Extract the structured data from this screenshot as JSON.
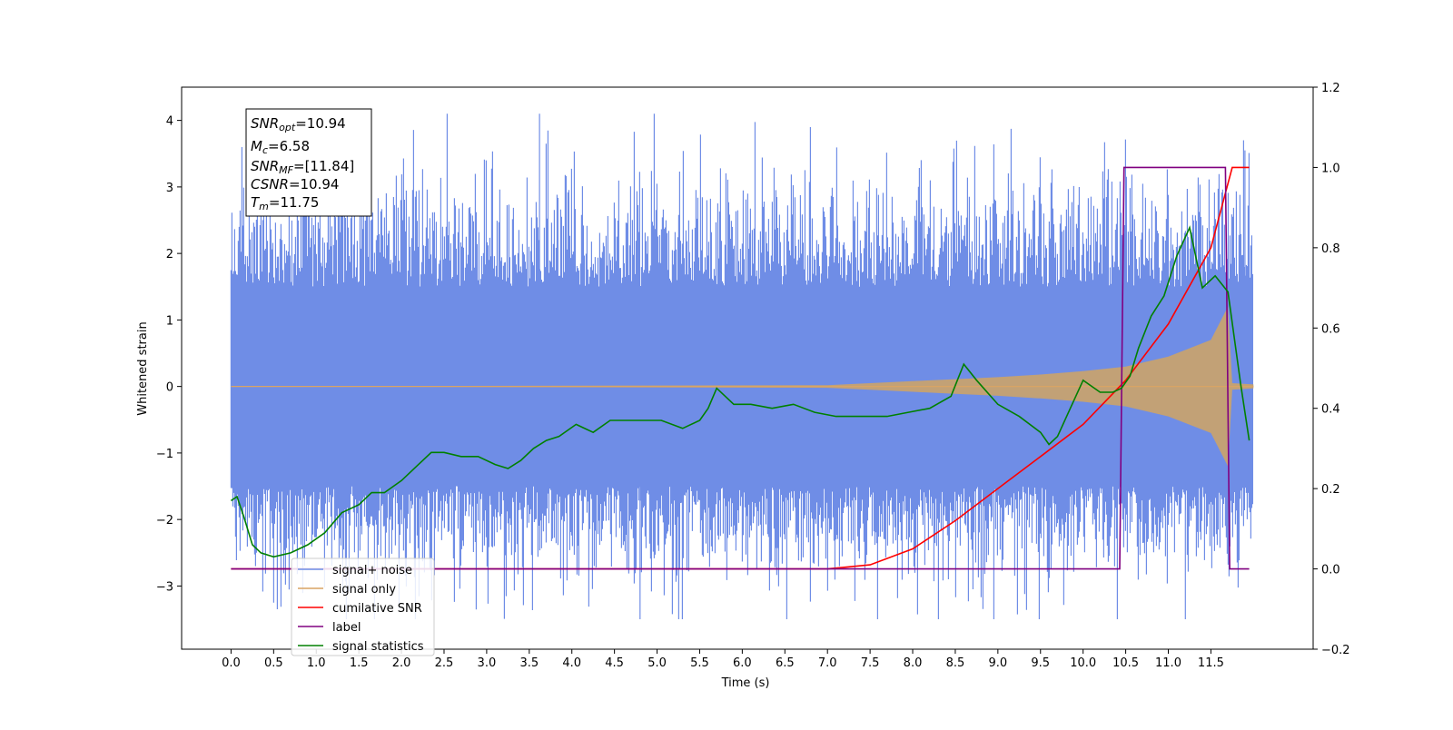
{
  "chart_data": {
    "type": "line",
    "xlabel": "Time (s)",
    "ylabel": "Whitened strain",
    "xlim": [
      -0.58,
      12.7
    ],
    "ylim": [
      -3.95,
      4.5
    ],
    "ylim_right": [
      -0.2,
      1.2
    ],
    "xticks": [
      0.0,
      0.5,
      1.0,
      1.5,
      2.0,
      2.5,
      3.0,
      3.5,
      4.0,
      4.5,
      5.0,
      5.5,
      6.0,
      6.5,
      7.0,
      7.5,
      8.0,
      8.5,
      9.0,
      9.5,
      10.0,
      10.5,
      11.0,
      11.5
    ],
    "xtick_labels": [
      "0.0",
      "0.5",
      "1.0",
      "1.5",
      "2.0",
      "2.5",
      "3.0",
      "3.5",
      "4.0",
      "4.5",
      "5.0",
      "5.5",
      "6.0",
      "6.5",
      "7.0",
      "7.5",
      "8.0",
      "8.5",
      "9.0",
      "9.5",
      "10.0",
      "10.5",
      "11.0",
      "11.5"
    ],
    "yticks_left": [
      -3,
      -2,
      -1,
      0,
      1,
      2,
      3,
      4
    ],
    "ytick_labels_left": [
      "−3",
      "−2",
      "−1",
      "0",
      "1",
      "2",
      "3",
      "4"
    ],
    "yticks_right": [
      -0.2,
      0.0,
      0.2,
      0.4,
      0.6,
      0.8,
      1.0,
      1.2
    ],
    "ytick_labels_right": [
      "−0.2",
      "0.0",
      "0.2",
      "0.4",
      "0.6",
      "0.8",
      "1.0",
      "1.2"
    ],
    "grid": false,
    "legend_position": "lower-left",
    "annotation_position": "top-left",
    "annotation": {
      "snr_opt": {
        "sym": "SNR",
        "sub": "opt",
        "val": "=10.94"
      },
      "mc": {
        "sym": "M",
        "sub": "c",
        "val": "=6.58"
      },
      "snr_mf": {
        "sym": "SNR",
        "sub": "MF",
        "val": "=[11.84]"
      },
      "csnr": {
        "sym": "",
        "sub": "",
        "val": "CSNR=10.94"
      },
      "tm": {
        "sym": "T",
        "sub": "m",
        "val": "=11.75"
      }
    },
    "series": [
      {
        "name": "signal+ noise",
        "color": "#6f8de6",
        "axis": "left",
        "kind": "noise-band",
        "time_range": [
          0.0,
          12.0
        ],
        "typical_amplitude": 1.0,
        "max": 4.1,
        "min": -3.5
      },
      {
        "name": "signal only",
        "color": "#d9a464",
        "axis": "left",
        "kind": "chirp-envelope",
        "x": [
          0.0,
          7.0,
          7.5,
          8.0,
          8.5,
          9.0,
          9.5,
          10.0,
          10.5,
          11.0,
          11.5,
          11.7,
          11.75,
          12.0
        ],
        "envelope": [
          0.0,
          0.02,
          0.05,
          0.08,
          0.11,
          0.14,
          0.18,
          0.23,
          0.3,
          0.45,
          0.7,
          1.2,
          0.05,
          0.03
        ]
      },
      {
        "name": "cumilative SNR",
        "color": "#ff0000",
        "axis": "right",
        "x": [
          0.0,
          7.0,
          7.5,
          8.0,
          8.5,
          9.0,
          9.5,
          10.0,
          10.5,
          11.0,
          11.5,
          11.75,
          11.95
        ],
        "y": [
          0.0,
          0.0,
          0.01,
          0.05,
          0.12,
          0.2,
          0.28,
          0.36,
          0.47,
          0.61,
          0.8,
          1.0,
          1.0
        ]
      },
      {
        "name": "label",
        "color": "#800080",
        "axis": "right",
        "x": [
          0.0,
          10.43,
          10.48,
          11.67,
          11.72,
          11.95
        ],
        "y": [
          0.0,
          0.0,
          1.0,
          1.0,
          0.0,
          0.0
        ]
      },
      {
        "name": "signal statistics",
        "color": "#008000",
        "axis": "right",
        "x": [
          0.0,
          0.07,
          0.15,
          0.25,
          0.35,
          0.5,
          0.7,
          0.9,
          1.1,
          1.3,
          1.5,
          1.65,
          1.8,
          2.0,
          2.2,
          2.35,
          2.5,
          2.7,
          2.9,
          3.1,
          3.25,
          3.4,
          3.55,
          3.7,
          3.85,
          4.05,
          4.25,
          4.45,
          4.65,
          4.85,
          5.05,
          5.3,
          5.5,
          5.6,
          5.7,
          5.9,
          6.1,
          6.35,
          6.6,
          6.85,
          7.1,
          7.4,
          7.7,
          7.95,
          8.2,
          8.45,
          8.6,
          8.75,
          9.0,
          9.25,
          9.5,
          9.6,
          9.7,
          9.85,
          10.0,
          10.2,
          10.35,
          10.45,
          10.55,
          10.65,
          10.8,
          10.95,
          11.1,
          11.25,
          11.4,
          11.55,
          11.7,
          11.85,
          11.95
        ],
        "y": [
          0.17,
          0.18,
          0.13,
          0.06,
          0.04,
          0.03,
          0.04,
          0.06,
          0.09,
          0.14,
          0.16,
          0.19,
          0.19,
          0.22,
          0.26,
          0.29,
          0.29,
          0.28,
          0.28,
          0.26,
          0.25,
          0.27,
          0.3,
          0.32,
          0.33,
          0.36,
          0.34,
          0.37,
          0.37,
          0.37,
          0.37,
          0.35,
          0.37,
          0.4,
          0.45,
          0.41,
          0.41,
          0.4,
          0.41,
          0.39,
          0.38,
          0.38,
          0.38,
          0.39,
          0.4,
          0.43,
          0.51,
          0.47,
          0.41,
          0.38,
          0.34,
          0.31,
          0.33,
          0.4,
          0.47,
          0.44,
          0.44,
          0.45,
          0.48,
          0.55,
          0.63,
          0.68,
          0.78,
          0.85,
          0.7,
          0.73,
          0.69,
          0.46,
          0.32
        ]
      }
    ]
  }
}
